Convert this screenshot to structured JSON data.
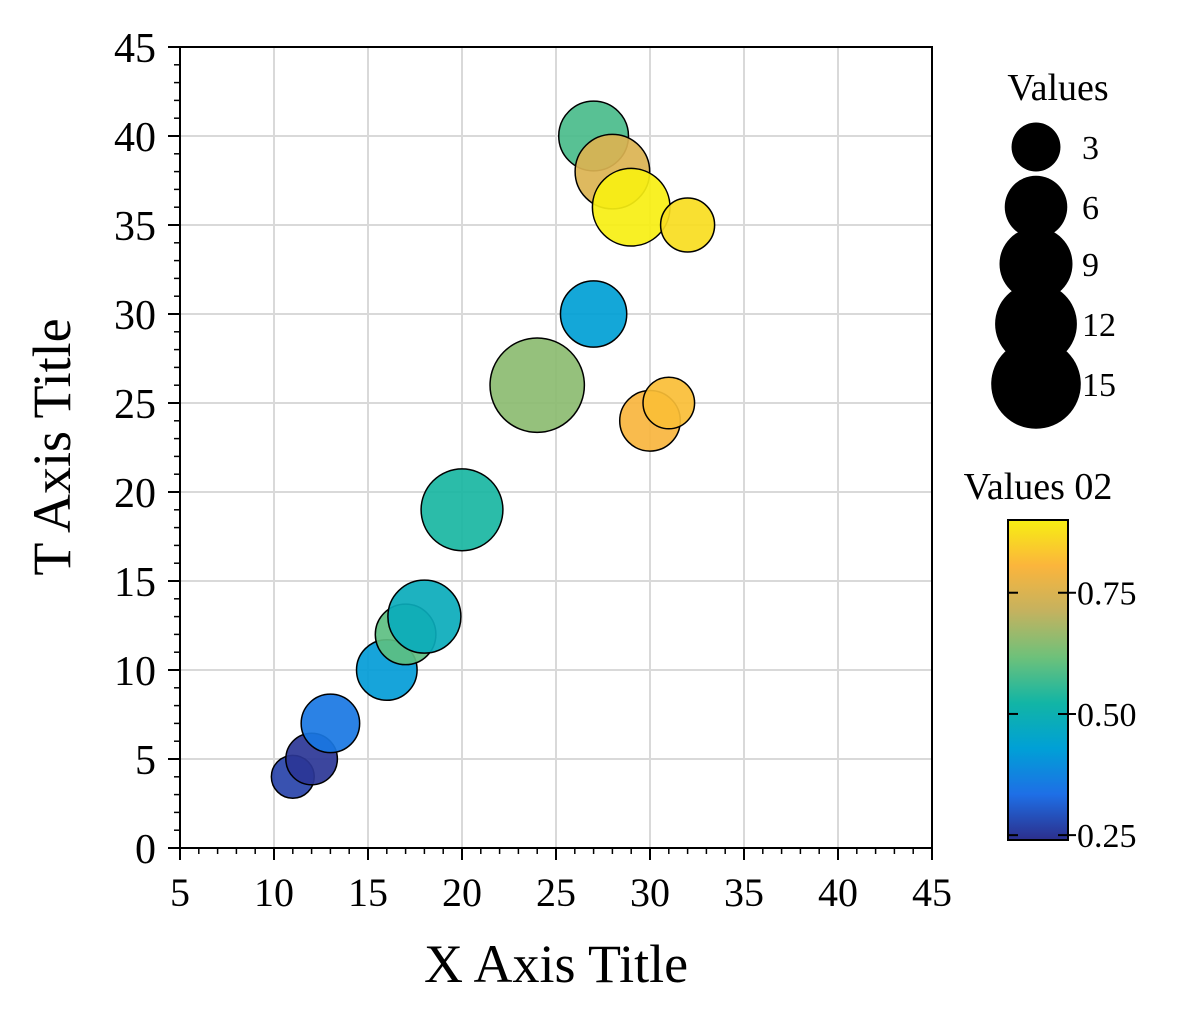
{
  "chart_data": {
    "type": "scatter",
    "title": "",
    "xlabel": "X Axis Title",
    "ylabel": "T Axis Title",
    "xlim": [
      5,
      45
    ],
    "ylim": [
      0,
      45
    ],
    "xticks": [
      "5",
      "10",
      "15",
      "20",
      "25",
      "30",
      "35",
      "40",
      "45"
    ],
    "yticks": [
      "0",
      "5",
      "10",
      "15",
      "20",
      "25",
      "30",
      "35",
      "40",
      "45"
    ],
    "grid": true,
    "points": [
      {
        "x": 11,
        "y": 4,
        "size": 2,
        "color_value": 0.27
      },
      {
        "x": 12,
        "y": 5,
        "size": 3.5,
        "color_value": 0.25
      },
      {
        "x": 13,
        "y": 7,
        "size": 5,
        "color_value": 0.35
      },
      {
        "x": 16,
        "y": 10,
        "size": 5.5,
        "color_value": 0.42
      },
      {
        "x": 17,
        "y": 12,
        "size": 5.5,
        "color_value": 0.6
      },
      {
        "x": 18,
        "y": 13,
        "size": 9,
        "color_value": 0.48
      },
      {
        "x": 20,
        "y": 19,
        "size": 12,
        "color_value": 0.53
      },
      {
        "x": 24,
        "y": 26,
        "size": 17,
        "color_value": 0.65
      },
      {
        "x": 27,
        "y": 30,
        "size": 7,
        "color_value": 0.43
      },
      {
        "x": 27,
        "y": 40,
        "size": 8,
        "color_value": 0.58
      },
      {
        "x": 28,
        "y": 38,
        "size": 9.5,
        "color_value": 0.75
      },
      {
        "x": 29,
        "y": 36,
        "size": 10.5,
        "color_value": 0.9
      },
      {
        "x": 30,
        "y": 24,
        "size": 5.5,
        "color_value": 0.8
      },
      {
        "x": 31,
        "y": 25,
        "size": 3.5,
        "color_value": 0.82
      },
      {
        "x": 32,
        "y": 35,
        "size": 4,
        "color_value": 0.87
      }
    ],
    "size_legend": {
      "title": "Values",
      "entries": [
        {
          "label": "3",
          "size": 3
        },
        {
          "label": "6",
          "size": 6
        },
        {
          "label": "9",
          "size": 9
        },
        {
          "label": "12",
          "size": 12
        },
        {
          "label": "15",
          "size": 15
        }
      ]
    },
    "colorbar": {
      "title": "Values 02",
      "range": [
        0.24,
        0.9
      ],
      "ticks": [
        {
          "value": 0.25,
          "label": "0.25"
        },
        {
          "value": 0.5,
          "label": "0.50"
        },
        {
          "value": 0.75,
          "label": "0.75"
        }
      ],
      "colors": [
        "#2c2f8c",
        "#1e6fe6",
        "#00a0d6",
        "#12b5a5",
        "#6ec17a",
        "#c4b25f",
        "#fbb53c",
        "#f7ef12"
      ]
    }
  }
}
